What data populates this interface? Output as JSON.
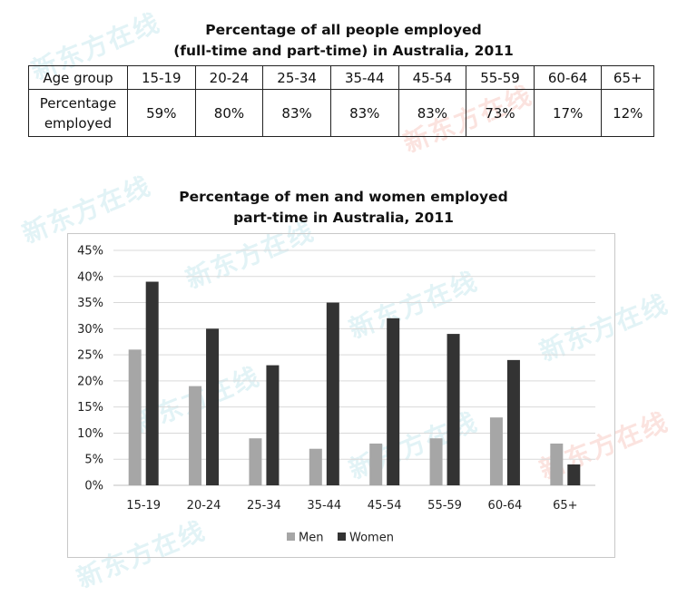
{
  "header": {
    "title_line1": "Percentage of all people employed",
    "title_line2": "(full-time and part-time) in Australia, 2011"
  },
  "table": {
    "row1_label": "Age group",
    "row2_label_line1": "Percentage",
    "row2_label_line2": "employed",
    "columns": [
      "15-19",
      "20-24",
      "25-34",
      "35-44",
      "45-54",
      "55-59",
      "60-64",
      "65+"
    ],
    "values": [
      "59%",
      "80%",
      "83%",
      "83%",
      "83%",
      "73%",
      "17%",
      "12%"
    ]
  },
  "watermark": "新东方在线",
  "colors": {
    "men": "#a6a6a6",
    "women": "#333333",
    "grid": "#d9d9d9"
  },
  "chart_data": {
    "type": "bar",
    "title_line1": "Percentage of men and women employed",
    "title_line2": "part-time in Australia, 2011",
    "categories": [
      "15-19",
      "20-24",
      "25-34",
      "35-44",
      "45-54",
      "55-59",
      "60-64",
      "65+"
    ],
    "series": [
      {
        "name": "Men",
        "values": [
          26,
          19,
          9,
          7,
          8,
          9,
          13,
          8
        ]
      },
      {
        "name": "Women",
        "values": [
          39,
          30,
          23,
          35,
          32,
          29,
          24,
          4
        ]
      }
    ],
    "ylim": [
      0,
      45
    ],
    "yticks": [
      "0%",
      "5%",
      "10%",
      "15%",
      "20%",
      "25%",
      "30%",
      "35%",
      "40%",
      "45%"
    ],
    "grid": true,
    "legend": "bottom"
  }
}
